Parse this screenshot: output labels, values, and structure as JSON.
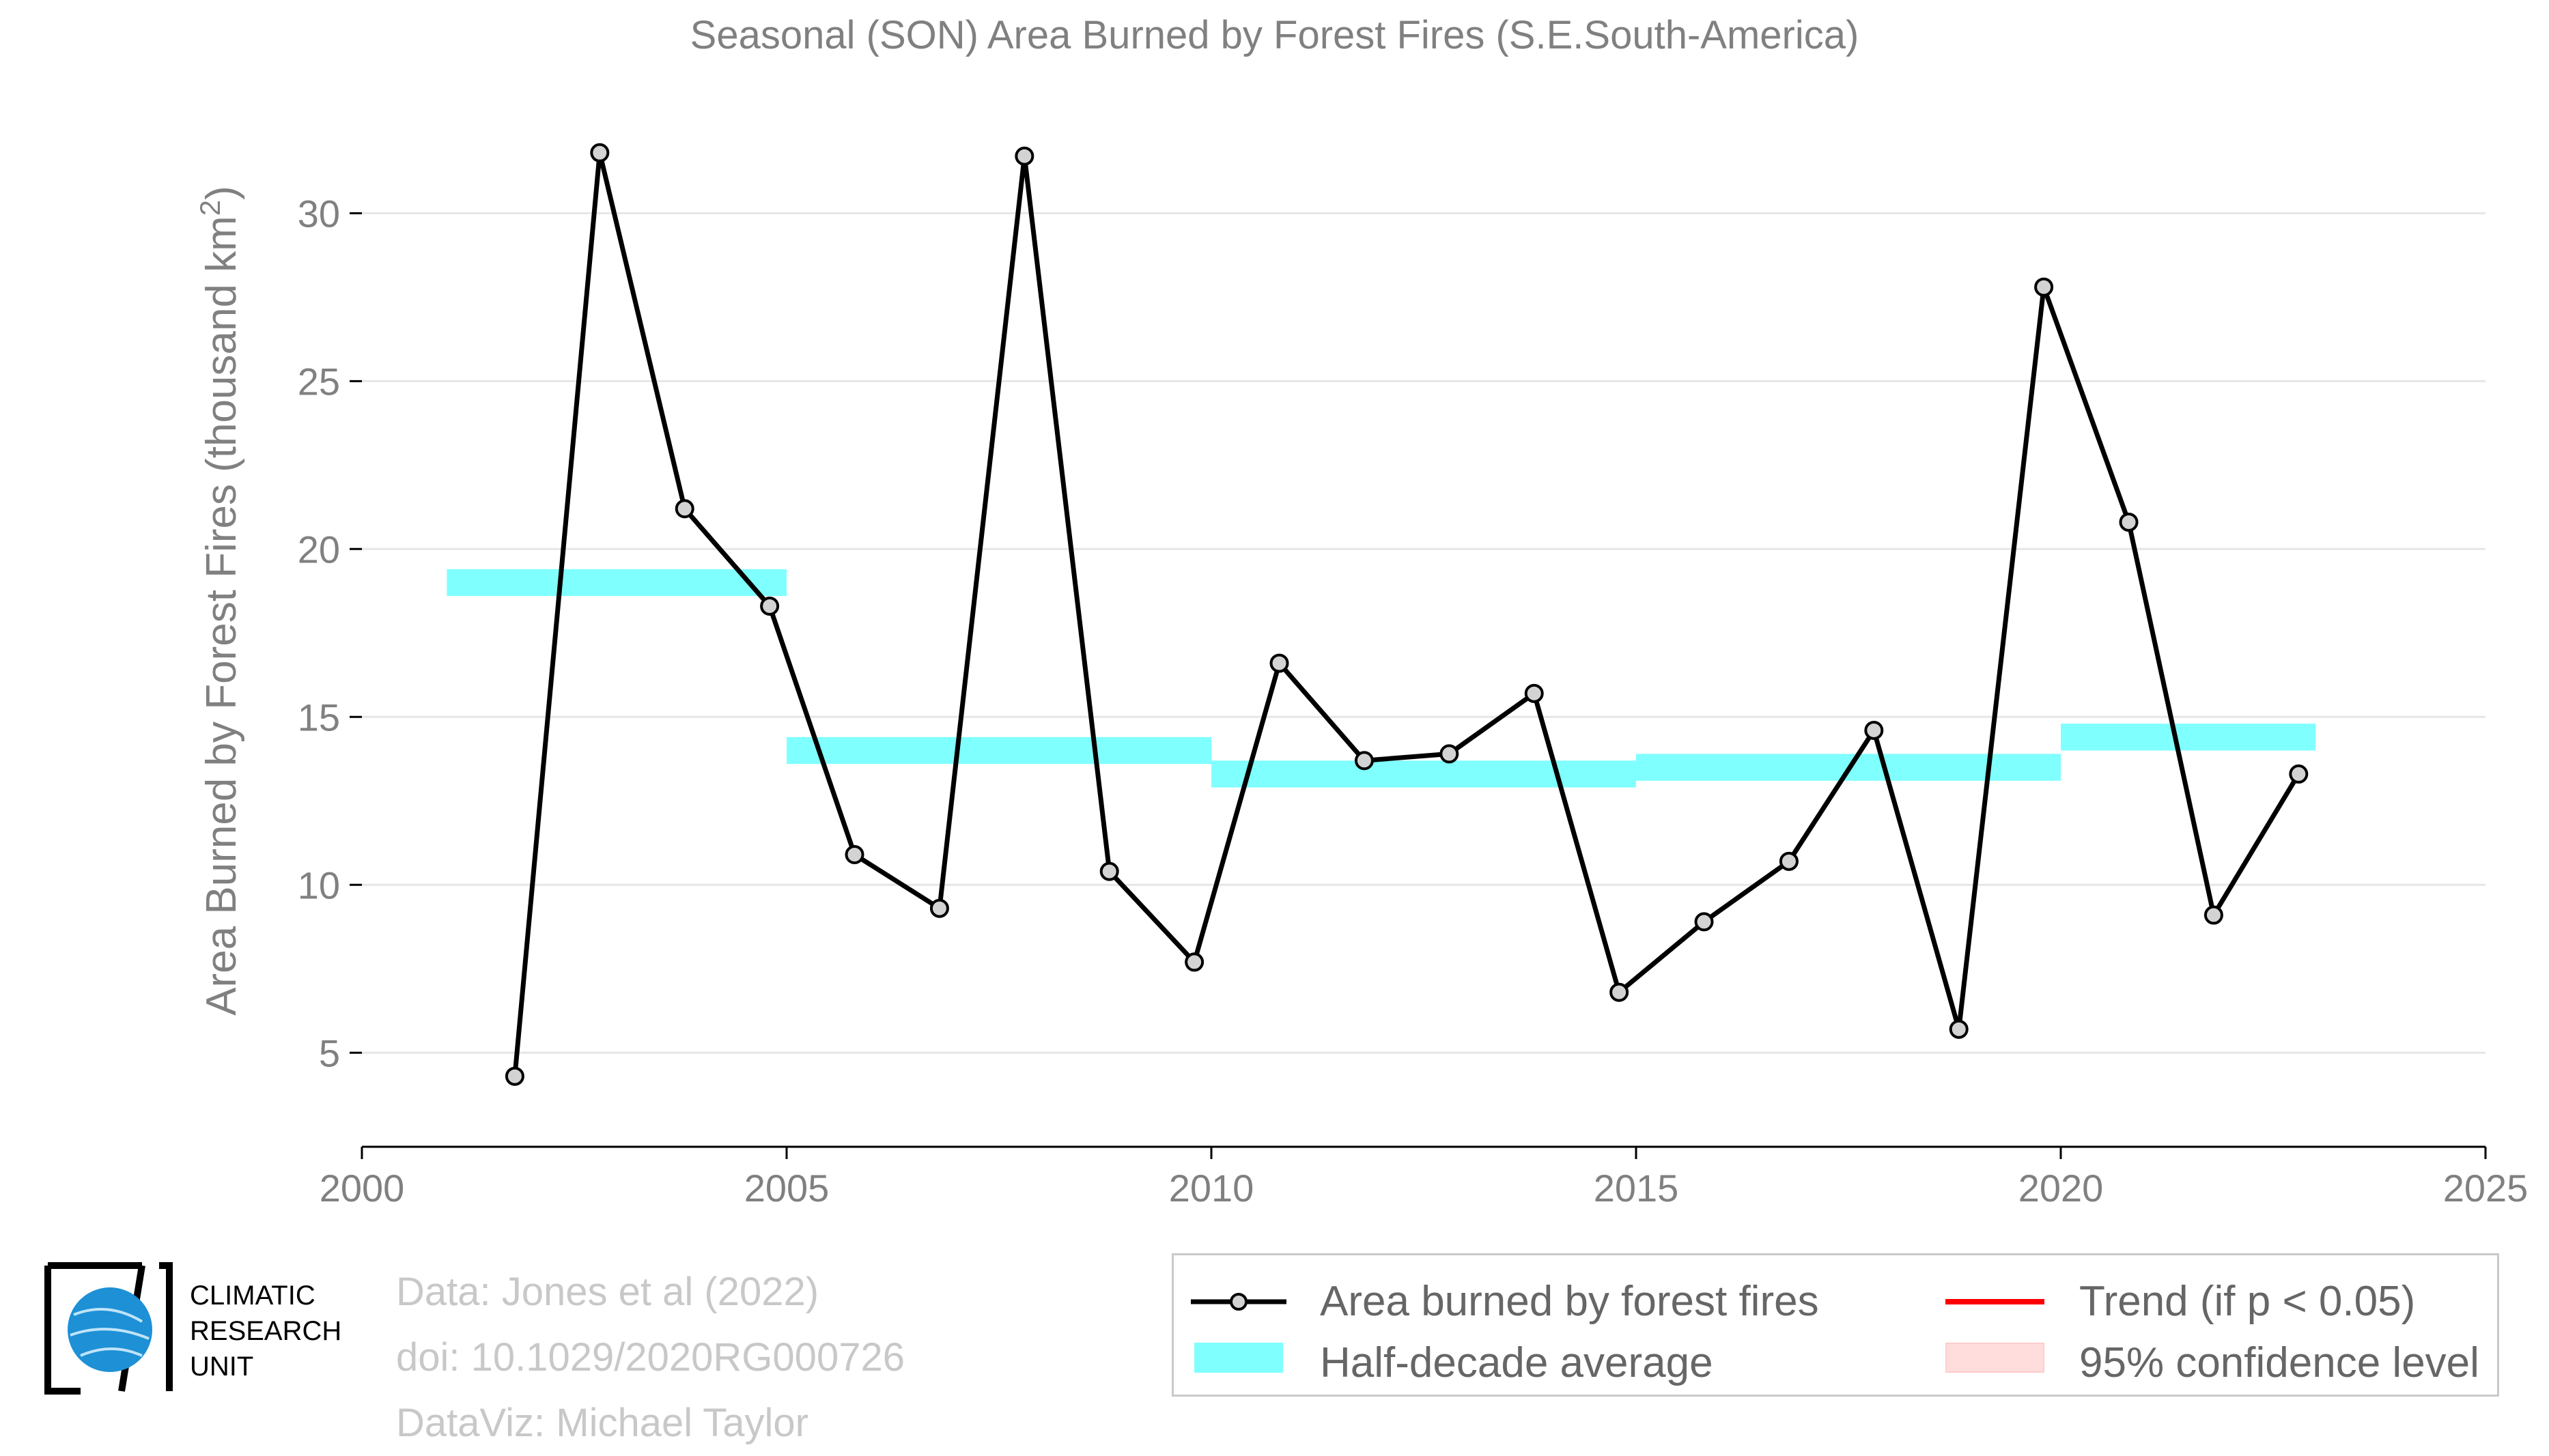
{
  "chart_data": {
    "type": "line",
    "title": "Seasonal (SON) Area Burned by Forest Fires (S.E.South-America)",
    "ylabel": "Area Burned by Forest Fires (thousand km²)",
    "xlabel": "",
    "xlim": [
      2000,
      2025
    ],
    "ylim": [
      2.2,
      33.3
    ],
    "x_ticks": [
      "2000",
      "2005",
      "2010",
      "2015",
      "2020",
      "2025"
    ],
    "y_ticks": [
      "5",
      "10",
      "15",
      "20",
      "25",
      "30"
    ],
    "grid": "horizontal",
    "series": [
      {
        "name": "Area burned by forest fires",
        "color": "#000000",
        "marker_fill": "#d3d3d3",
        "x": [
          2001.8,
          2002.8,
          2003.8,
          2004.8,
          2005.8,
          2006.8,
          2007.8,
          2008.8,
          2009.8,
          2010.8,
          2011.8,
          2012.8,
          2013.8,
          2014.8,
          2015.8,
          2016.8,
          2017.8,
          2018.8,
          2019.8,
          2020.8,
          2021.8,
          2022.8
        ],
        "y": [
          4.3,
          31.8,
          21.2,
          18.3,
          10.9,
          9.3,
          31.7,
          10.4,
          7.7,
          16.6,
          13.7,
          13.9,
          15.7,
          6.8,
          8.9,
          10.7,
          14.6,
          5.7,
          27.8,
          20.8,
          9.1,
          13.3
        ]
      }
    ],
    "half_decade_averages": {
      "name": "Half-decade average",
      "color": "#80ffff",
      "segments": [
        {
          "x0": 2001,
          "x1": 2005,
          "y": 19.0,
          "spread": 0.4
        },
        {
          "x0": 2005,
          "x1": 2010,
          "y": 14.0,
          "spread": 0.4
        },
        {
          "x0": 2010,
          "x1": 2015,
          "y": 13.3,
          "spread": 0.4
        },
        {
          "x0": 2015,
          "x1": 2020,
          "y": 13.5,
          "spread": 0.4
        },
        {
          "x0": 2020,
          "x1": 2023,
          "y": 14.4,
          "spread": 0.4
        }
      ]
    },
    "legend_placement": "bottom-right"
  },
  "legend": {
    "line_label": "Area burned by forest fires",
    "avg_label": "Half-decade average",
    "trend_label": "Trend (if p < 0.05)",
    "ci_label": "95% confidence level",
    "trend_color": "#ff0000",
    "ci_color": "#ffdddd"
  },
  "credits": {
    "data": "Data: Jones et al (2022)",
    "doi": "doi: 10.1029/2020RG000726",
    "dataviz": "DataViz: Michael Taylor"
  },
  "logo": {
    "line1": "CLIMATIC",
    "line2": "RESEARCH",
    "line3": "UNIT",
    "color": "#1e90d6"
  }
}
